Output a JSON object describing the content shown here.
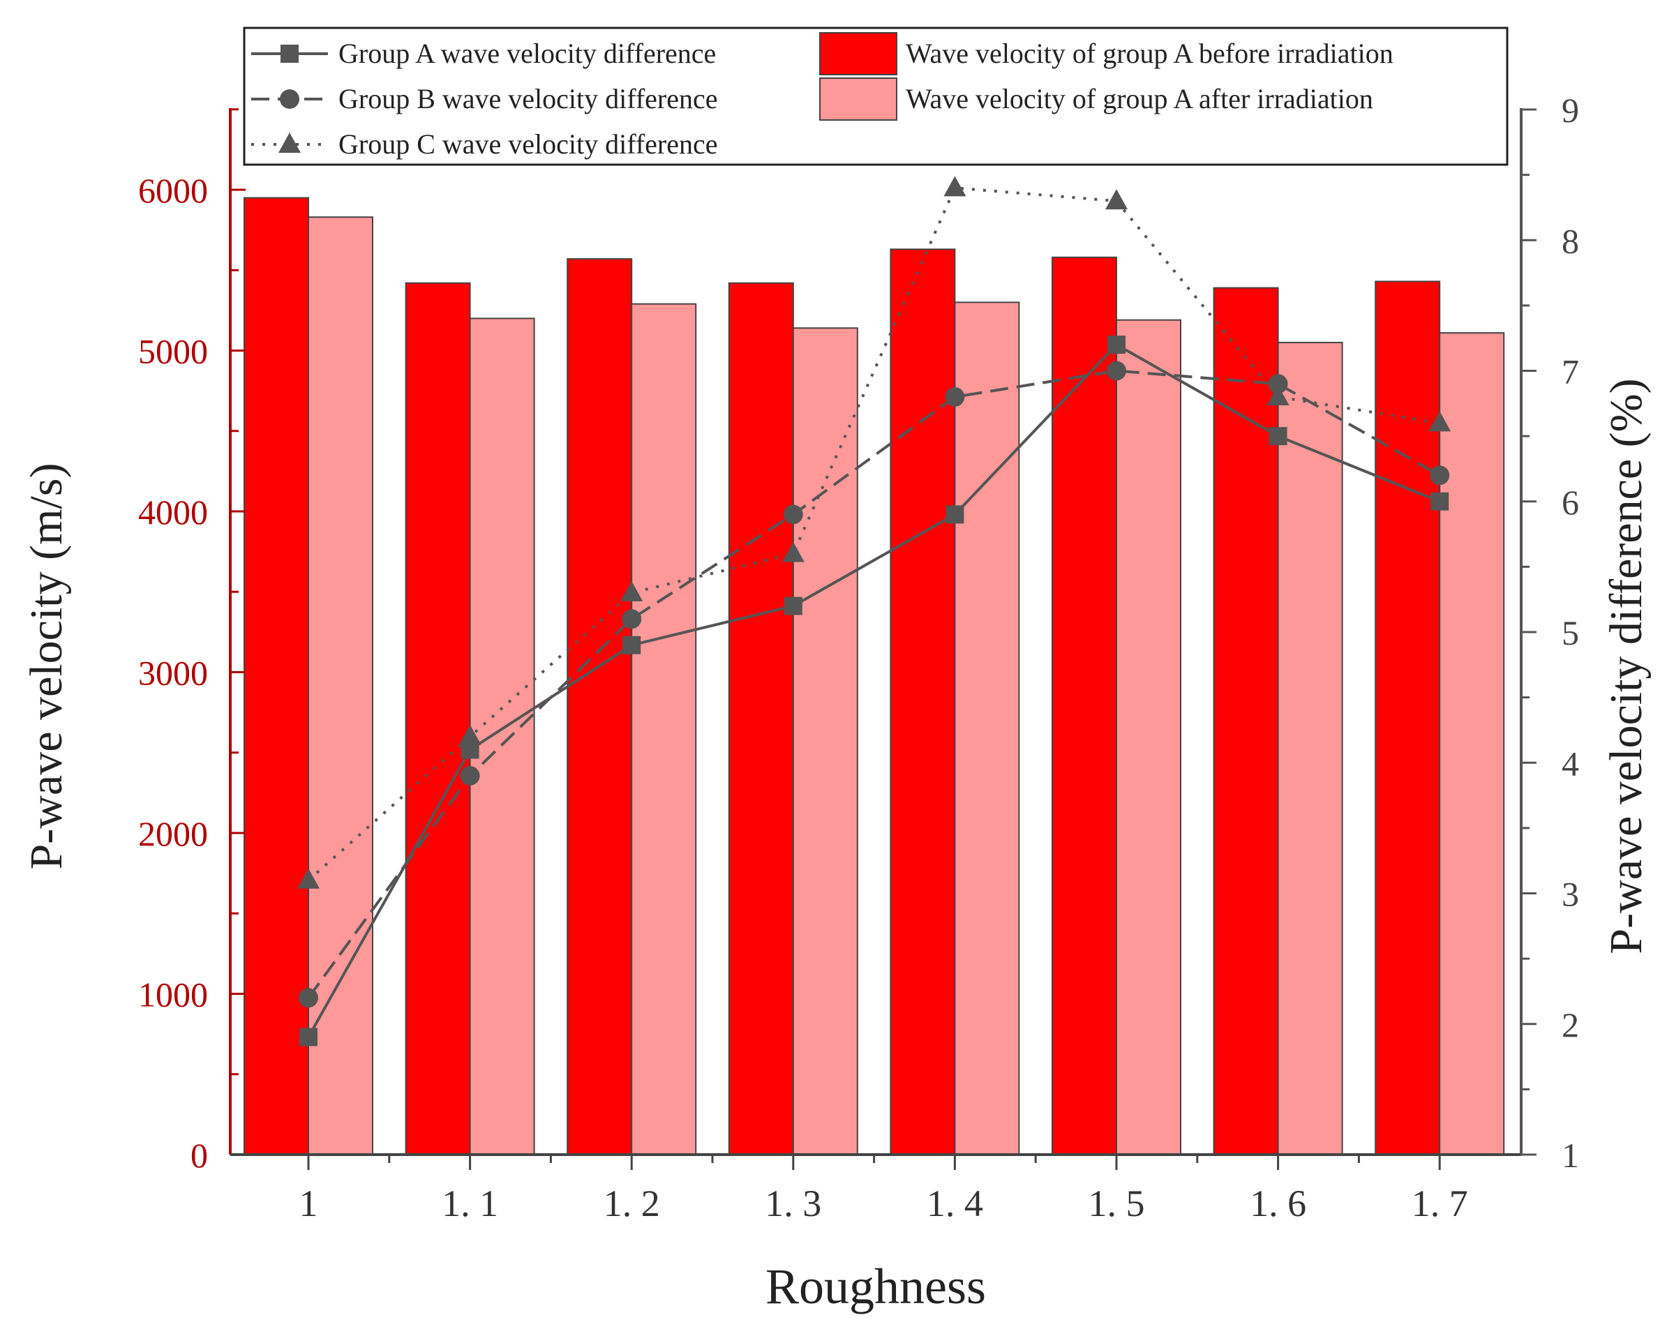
{
  "chart_data": {
    "type": "bar",
    "title": "",
    "xlabel": "Roughness",
    "ylabel": "P-wave velocity (m/s)",
    "y2label": "P-wave velocity difference (%)",
    "categories": [
      "1",
      "1. 1",
      "1. 2",
      "1. 3",
      "1. 4",
      "1. 5",
      "1. 6",
      "1. 7"
    ],
    "ylim": [
      0,
      6500
    ],
    "yticks": [
      "0",
      "1000",
      "2000",
      "3000",
      "4000",
      "5000",
      "6000"
    ],
    "y2lim": [
      1,
      9
    ],
    "y2ticks": [
      "1",
      "2",
      "3",
      "4",
      "5",
      "6",
      "7",
      "8",
      "9"
    ],
    "bar_series": [
      {
        "name": "Wave velocity of group A before irradiation",
        "color": "#ff0000",
        "values": [
          5950,
          5420,
          5570,
          5420,
          5630,
          5580,
          5390,
          5430
        ]
      },
      {
        "name": "Wave velocity of group A after irradiation",
        "color": "#ff9999",
        "values": [
          5830,
          5200,
          5290,
          5140,
          5300,
          5190,
          5050,
          5110
        ]
      }
    ],
    "line_series": [
      {
        "name": "Group A wave  velocity difference",
        "marker": "square",
        "dash": "solid",
        "values": [
          1.9,
          4.1,
          4.9,
          5.2,
          5.9,
          7.2,
          6.5,
          6.0
        ]
      },
      {
        "name": "Group B wave  velocity difference",
        "marker": "circle",
        "dash": "dashed",
        "values": [
          2.2,
          3.9,
          5.1,
          5.9,
          6.8,
          7.0,
          6.9,
          6.2
        ]
      },
      {
        "name": "Group C wave velocity difference",
        "marker": "triangle",
        "dash": "dotted",
        "values": [
          3.1,
          4.2,
          5.3,
          5.6,
          8.4,
          8.3,
          6.8,
          6.6
        ]
      }
    ],
    "colors": {
      "left_axis": "#b00000",
      "right_axis": "#555555",
      "line": "#555555"
    },
    "legend_position": "top"
  }
}
